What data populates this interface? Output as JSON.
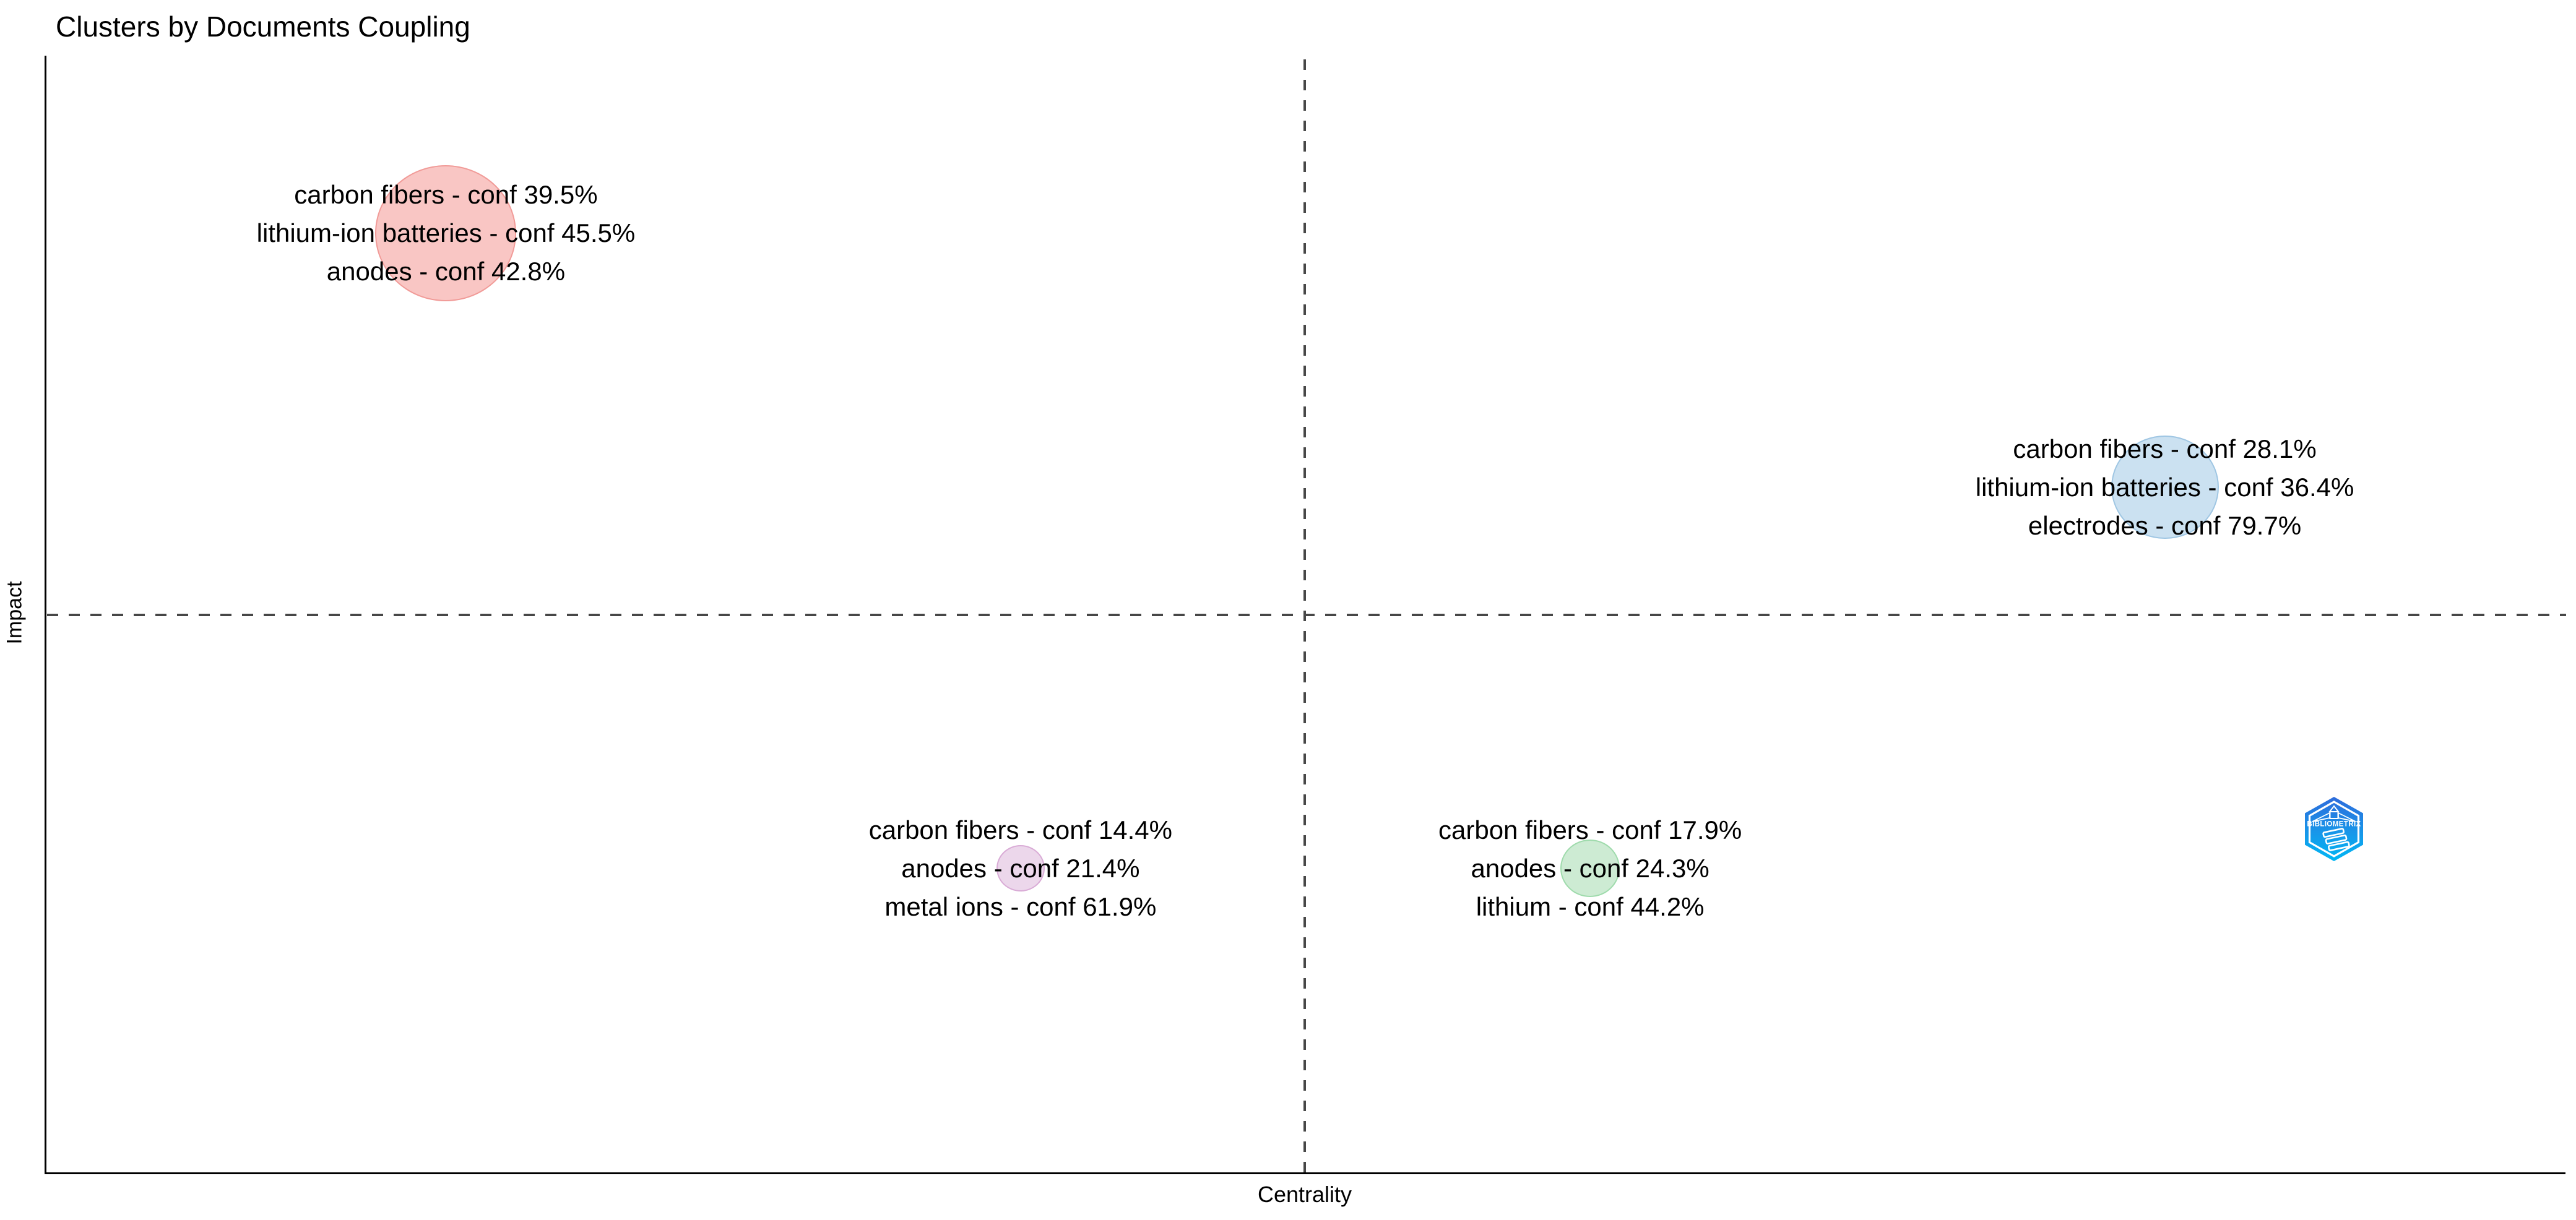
{
  "title": "Clusters by Documents Coupling",
  "axes": {
    "x_label": "Centrality",
    "y_label": "Impact"
  },
  "logo": {
    "text": "BIBLIOMETRIX",
    "name": "bibliometrix-logo",
    "color_top": "#2E6BDB",
    "color_bottom": "#00B7F4"
  },
  "style_colors": {
    "axis": "#000000",
    "quadrant_divider": "#474747",
    "background": "#ffffff"
  },
  "chart_data": {
    "type": "scatter",
    "title": "Clusters by Documents Coupling",
    "xlabel": "Centrality",
    "ylabel": "Impact",
    "grid": false,
    "legend": "none",
    "axis_ranges": {
      "x": [
        0,
        1
      ],
      "y": [
        0,
        1
      ]
    },
    "quadrant_divider": {
      "x": 0.5,
      "y": 0.5,
      "style": "dashed"
    },
    "clusters": [
      {
        "id": "cluster-red",
        "quadrant": "upper-left",
        "centrality": 0.159,
        "impact": 0.841,
        "radius_px": 114,
        "fill": "#F9C6C4",
        "stroke": "#F19B98",
        "lines": [
          "carbon fibers - conf 39.5%",
          "lithium-ion batteries - conf 45.5%",
          "anodes - conf 42.8%"
        ]
      },
      {
        "id": "cluster-blue",
        "quadrant": "upper-right",
        "centrality": 0.841,
        "impact": 0.614,
        "radius_px": 87,
        "fill": "#CBE1F1",
        "stroke": "#9FC6E3",
        "lines": [
          "carbon fibers - conf 28.1%",
          "lithium-ion batteries - conf 36.4%",
          "electrodes - conf 79.7%"
        ]
      },
      {
        "id": "cluster-purple",
        "quadrant": "lower-left",
        "centrality": 0.387,
        "impact": 0.273,
        "radius_px": 39,
        "fill": "#ECD7EB",
        "stroke": "#D9ABD6",
        "lines": [
          "carbon fibers - conf 14.4%",
          "anodes - conf 21.4%",
          "metal ions - conf 61.9%"
        ]
      },
      {
        "id": "cluster-green",
        "quadrant": "lower-right",
        "centrality": 0.613,
        "impact": 0.273,
        "radius_px": 48,
        "fill": "#CDEBD3",
        "stroke": "#9FDBAC",
        "lines": [
          "carbon fibers - conf 17.9%",
          "anodes - conf 24.3%",
          "lithium - conf 44.2%"
        ]
      }
    ]
  }
}
